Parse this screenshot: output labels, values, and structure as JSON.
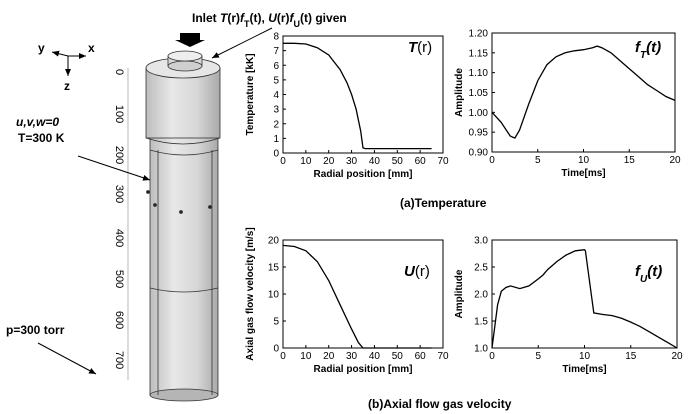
{
  "chart_data": [
    {
      "type": "line",
      "title_parts": [
        "T",
        "(r)"
      ],
      "xlabel": "Radial position [mm]",
      "ylabel": "Temperature [kK]",
      "x": [
        0,
        5,
        10,
        15,
        20,
        25,
        28,
        30,
        32,
        34,
        35,
        36,
        40,
        50,
        60,
        65
      ],
      "values": [
        7.5,
        7.5,
        7.45,
        7.2,
        6.7,
        5.7,
        4.8,
        4.0,
        3.0,
        1.5,
        0.35,
        0.3,
        0.3,
        0.3,
        0.3,
        0.3
      ],
      "color": "#000000",
      "xlim": [
        0,
        70
      ],
      "xticks": [
        0,
        10,
        20,
        30,
        40,
        50,
        60,
        70
      ],
      "ylim": [
        0,
        8
      ],
      "yticks": [
        0,
        1,
        2,
        3,
        4,
        5,
        6,
        7,
        8
      ]
    },
    {
      "type": "line",
      "title_parts": [
        "f",
        "T",
        "(t)"
      ],
      "xlabel": "Time[ms]",
      "ylabel": "Amplitude",
      "x": [
        0,
        1,
        2,
        2.5,
        3,
        4,
        5,
        6,
        7,
        8,
        9,
        10,
        11,
        11.5,
        12,
        13,
        14,
        15,
        16,
        17,
        18,
        19,
        20
      ],
      "values": [
        1.0,
        0.975,
        0.94,
        0.935,
        0.955,
        1.02,
        1.08,
        1.12,
        1.14,
        1.15,
        1.155,
        1.158,
        1.163,
        1.167,
        1.163,
        1.15,
        1.13,
        1.11,
        1.09,
        1.07,
        1.055,
        1.04,
        1.03
      ],
      "color": "#000000",
      "xlim": [
        0,
        20
      ],
      "xticks": [
        0,
        5,
        10,
        15,
        20
      ],
      "ylim": [
        0.9,
        1.2
      ],
      "yticks": [
        {
          "value": 0.9,
          "label": "0.90"
        },
        0.95,
        {
          "value": 1.0,
          "label": "1.00"
        },
        1.05,
        {
          "value": 1.1,
          "label": "1.10"
        },
        1.15,
        {
          "value": 1.2,
          "label": "1.20"
        }
      ]
    },
    {
      "type": "line",
      "title_parts": [
        "U",
        "(r)"
      ],
      "xlabel": "Radial position [mm]",
      "ylabel": "Axial gas flow velocity [m/s]",
      "x": [
        0,
        5,
        10,
        15,
        20,
        25,
        30,
        33,
        35,
        40,
        50,
        60,
        65
      ],
      "values": [
        19,
        18.8,
        18,
        16,
        12.5,
        8,
        3.5,
        1,
        0,
        0,
        0,
        0,
        0
      ],
      "color": "#000000",
      "xlim": [
        0,
        70
      ],
      "xticks": [
        0,
        10,
        20,
        30,
        40,
        50,
        60,
        70
      ],
      "ylim": [
        0,
        20
      ],
      "yticks": [
        0,
        5,
        10,
        15,
        20
      ]
    },
    {
      "type": "line",
      "title_parts": [
        "f",
        "U",
        "(t)"
      ],
      "xlabel": "Time[ms]",
      "ylabel": "Amplitude",
      "x": [
        0,
        0.3,
        0.6,
        1,
        1.5,
        2,
        3,
        4,
        5,
        5.5,
        6,
        7,
        8,
        8.5,
        9,
        10,
        10.1,
        11,
        12,
        13,
        14,
        15,
        16,
        17,
        18,
        19,
        20
      ],
      "values": [
        1.0,
        1.4,
        1.8,
        2.05,
        2.12,
        2.15,
        2.1,
        2.15,
        2.28,
        2.35,
        2.45,
        2.6,
        2.72,
        2.76,
        2.8,
        2.82,
        2.8,
        1.65,
        1.62,
        1.6,
        1.55,
        1.48,
        1.4,
        1.3,
        1.2,
        1.1,
        1.0
      ],
      "color": "#000000",
      "xlim": [
        0,
        20
      ],
      "xticks": [
        0,
        5,
        10,
        15,
        20
      ],
      "ylim": [
        1.0,
        3.0
      ],
      "yticks": [
        {
          "value": 1.0,
          "label": "1.0"
        },
        1.5,
        {
          "value": 2.0,
          "label": "2.0"
        },
        2.5,
        {
          "value": 3.0,
          "label": "3.0"
        }
      ]
    }
  ],
  "captions": [
    "(a)Temperature",
    "(b)Axial flow gas velocity"
  ],
  "diagram": {
    "inlet_parts": [
      "Inlet ",
      "T",
      "(r)",
      "f",
      "T",
      "(t), ",
      "U",
      "(r)",
      "f",
      "U",
      "(t) given"
    ],
    "wall": [
      "u,v,w=0",
      "T=300 K"
    ],
    "outlet": "p=300 torr",
    "axes": [
      "y",
      "x",
      "z"
    ],
    "ruler": [
      0,
      100,
      200,
      300,
      400,
      500,
      600,
      700
    ]
  }
}
